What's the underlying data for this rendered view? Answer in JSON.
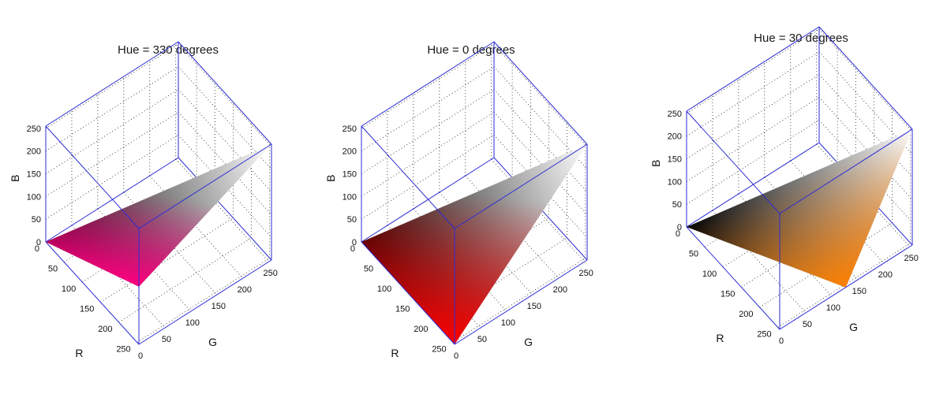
{
  "chart_data": [
    {
      "type": "surface3d",
      "title": "Hue = 330 degrees",
      "xlabel": "R",
      "ylabel": "G",
      "zlabel": "B",
      "xlim": [
        0,
        255
      ],
      "ylim": [
        0,
        255
      ],
      "zlim": [
        0,
        255
      ],
      "ticks": [
        0,
        50,
        100,
        150,
        200,
        250
      ],
      "grid": true,
      "hue_degrees": 330,
      "triangle": [
        [
          0,
          0,
          0
        ],
        [
          255,
          255,
          255
        ],
        [
          255,
          0,
          127
        ]
      ],
      "colors": {
        "dark": "#000000",
        "light": "#ffffff",
        "pure": "#ff0080"
      }
    },
    {
      "type": "surface3d",
      "title": "Hue = 0 degrees",
      "xlabel": "R",
      "ylabel": "G",
      "zlabel": "B",
      "xlim": [
        0,
        255
      ],
      "ylim": [
        0,
        255
      ],
      "zlim": [
        0,
        255
      ],
      "ticks": [
        0,
        50,
        100,
        150,
        200,
        250
      ],
      "grid": true,
      "hue_degrees": 0,
      "triangle": [
        [
          0,
          0,
          0
        ],
        [
          255,
          255,
          255
        ],
        [
          255,
          0,
          0
        ]
      ],
      "colors": {
        "dark": "#000000",
        "light": "#ffffff",
        "pure": "#ff0000"
      }
    },
    {
      "type": "surface3d",
      "title": "Hue = 30 degrees",
      "xlabel": "R",
      "ylabel": "G",
      "zlabel": "B",
      "xlim": [
        0,
        255
      ],
      "ylim": [
        0,
        255
      ],
      "zlim": [
        0,
        255
      ],
      "ticks": [
        0,
        50,
        100,
        150,
        200,
        250
      ],
      "grid": true,
      "hue_degrees": 30,
      "triangle": [
        [
          0,
          0,
          0
        ],
        [
          255,
          255,
          255
        ],
        [
          255,
          127,
          0
        ]
      ],
      "colors": {
        "dark": "#000000",
        "light": "#ffffff",
        "pure": "#ff8000"
      }
    }
  ],
  "colors": {
    "box": "#2b2bd6"
  }
}
